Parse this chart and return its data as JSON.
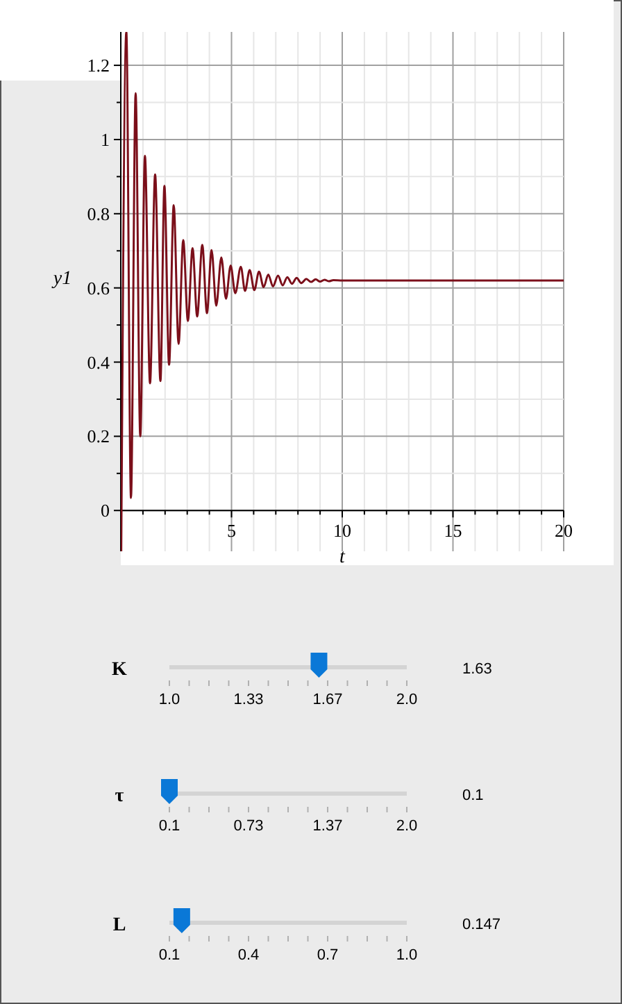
{
  "chart_data": [
    {
      "type": "line",
      "xlabel": "t",
      "ylabel": "y1",
      "xlim": [
        0,
        20
      ],
      "ylim": [
        -0.11,
        1.29
      ],
      "xticks": [
        {
          "value": 1,
          "label": null
        },
        {
          "value": 2,
          "label": null
        },
        {
          "value": 3,
          "label": null
        },
        {
          "value": 4,
          "label": null
        },
        5,
        {
          "value": 6,
          "label": null
        },
        {
          "value": 7,
          "label": null
        },
        {
          "value": 8,
          "label": null
        },
        {
          "value": 9,
          "label": null
        },
        10,
        {
          "value": 11,
          "label": null
        },
        {
          "value": 12,
          "label": null
        },
        {
          "value": 13,
          "label": null
        },
        {
          "value": 14,
          "label": null
        },
        15,
        {
          "value": 16,
          "label": null
        },
        {
          "value": 17,
          "label": null
        },
        {
          "value": 18,
          "label": null
        },
        {
          "value": 19,
          "label": null
        },
        20
      ],
      "yticks": [
        0,
        {
          "value": 0.1,
          "label": null
        },
        0.2,
        {
          "value": 0.3,
          "label": null
        },
        0.4,
        {
          "value": 0.5,
          "label": null
        },
        0.6,
        {
          "value": 0.7,
          "label": null
        },
        0.8,
        {
          "value": 0.9,
          "label": null
        },
        1,
        {
          "value": 1.1,
          "label": null
        },
        1.2
      ],
      "grid": true,
      "series": [
        {
          "color": "#7b0f1a",
          "x": [
            0.02,
            0.25,
            0.46,
            0.67,
            0.88,
            1.09,
            1.32,
            1.55,
            1.79,
            1.97,
            2.18,
            2.39,
            2.61,
            2.82,
            3.03,
            3.24,
            3.45,
            3.68,
            3.89,
            4.1,
            4.31,
            4.54,
            4.75,
            4.96,
            5.17,
            5.42,
            5.61,
            5.82,
            6.03,
            6.24,
            6.45,
            6.66,
            6.87,
            7.1,
            7.31,
            7.52,
            7.73,
            7.94,
            8.15,
            8.38,
            8.59,
            8.8,
            9.0,
            9.2,
            9.4,
            9.6,
            10,
            12,
            15,
            20
          ],
          "values": [
            -0.11,
            1.29,
            0.034,
            1.125,
            0.2,
            0.956,
            0.343,
            0.906,
            0.349,
            0.875,
            0.393,
            0.823,
            0.449,
            0.729,
            0.511,
            0.707,
            0.523,
            0.716,
            0.532,
            0.702,
            0.552,
            0.682,
            0.571,
            0.66,
            0.586,
            0.657,
            0.592,
            0.648,
            0.594,
            0.644,
            0.602,
            0.636,
            0.604,
            0.633,
            0.607,
            0.629,
            0.611,
            0.627,
            0.613,
            0.624,
            0.616,
            0.623,
            0.617,
            0.622,
            0.618,
            0.621,
            0.62,
            0.62,
            0.62,
            0.62
          ]
        }
      ]
    },
    {
      "type": "other",
      "annotations": [
        "K",
        "1.63",
        "1.0",
        "1.33",
        "1.67",
        "2.0",
        "τ",
        "0.1",
        "0.1",
        "0.73",
        "1.37",
        "2.0",
        "L",
        "0.147",
        "0.1",
        "0.4",
        "0.7",
        "1.0"
      ]
    }
  ]
}
